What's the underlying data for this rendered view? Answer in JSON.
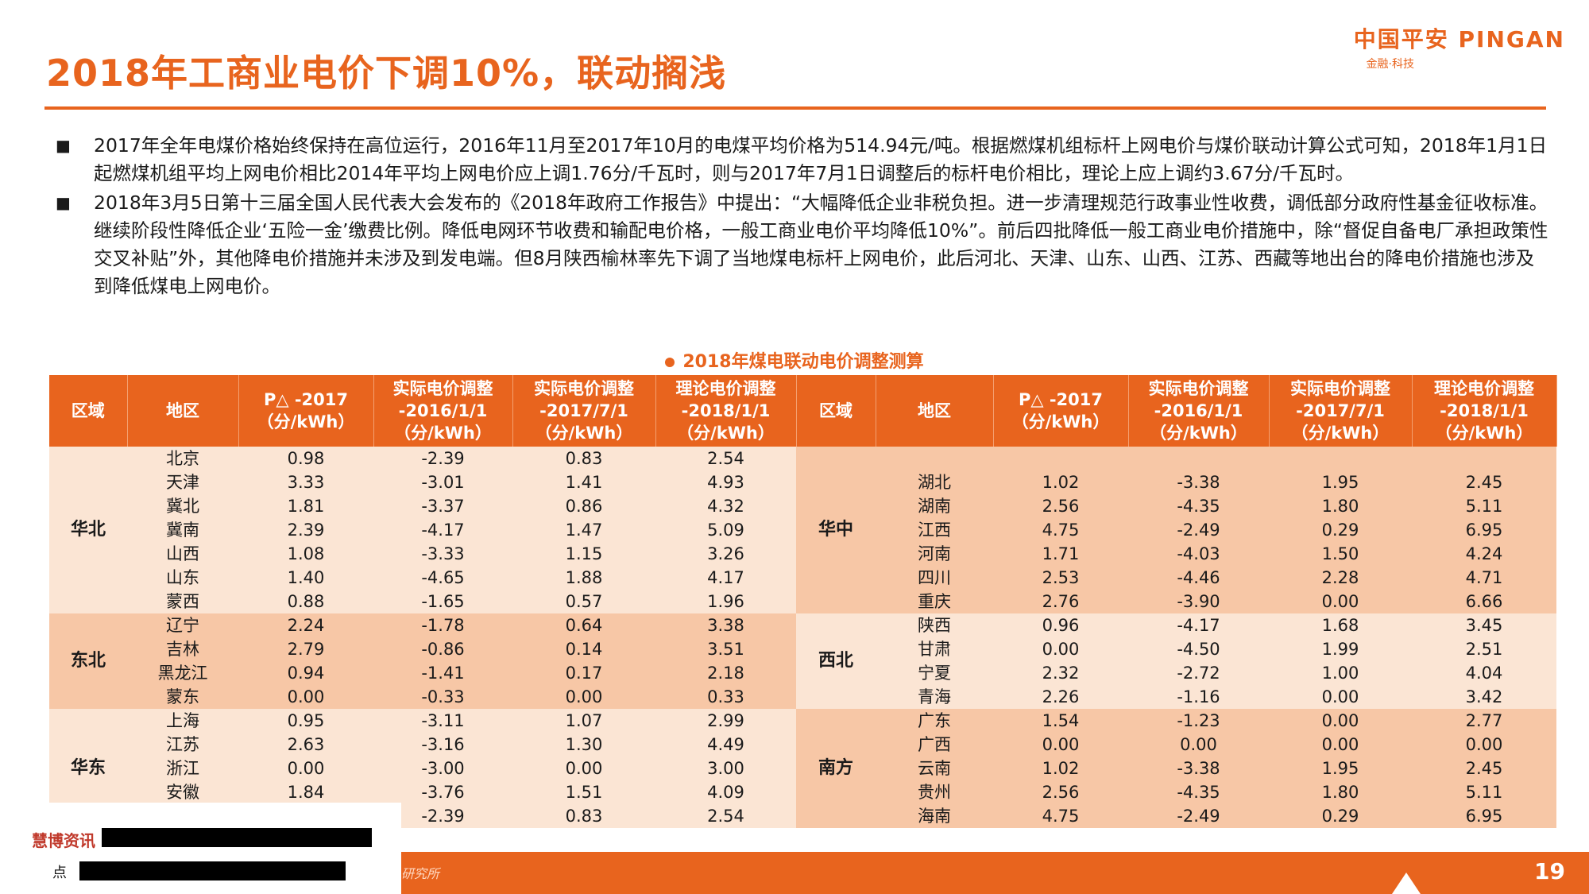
{
  "title": "2018年工商业电价下调10%，联动搁浅",
  "logo": {
    "main": "中国平安 PINGAN",
    "sub": "金融·科技"
  },
  "bullets": [
    "2017年全年电煤价格始终保持在高位运行，2016年11月至2017年10月的电煤平均价格为514.94元/吨。根据燃煤机组标杆上网电价与煤价联动计算公式可知，2018年1月1日起燃煤机组平均上网电价相比2014年平均上网电价应上调1.76分/千瓦时，则与2017年7月1日调整后的标杆电价相比，理论上应上调约3.67分/千瓦时。",
    "2018年3月5日第十三届全国人民代表大会发布的《2018年政府工作报告》中提出：“大幅降低企业非税负担。进一步清理规范行政事业性收费，调低部分政府性基金征收标准。继续阶段性降低企业‘五险一金’缴费比例。降低电网环节收费和输配电价格，一般工商业电价平均降低10%”。前后四批降低一般工商业电价措施中，除“督促自备电厂承担政策性交叉补贴”外，其他降电价措施并未涉及到发电端。但8月陕西榆林率先下调了当地煤电标杆上网电价，此后河北、天津、山东、山西、江苏、西藏等地出台的降电价措施也涉及到降低煤电上网电价。"
  ],
  "table_title": "2018年煤电联动电价调整测算",
  "headers": {
    "region": "区域",
    "area": "地区",
    "pdelta": "P△ -2017 （分/kWh）",
    "actual2016": "实际电价调整 -2016/1/1 （分/kWh）",
    "actual2017": "实际电价调整 -2017/7/1 （分/kWh）",
    "theory2018": "理论电价调整 -2018/1/1 （分/kWh）"
  },
  "left_groups": [
    {
      "region": "华北",
      "rows": [
        [
          "北京",
          "0.98",
          "-2.39",
          "0.83",
          "2.54"
        ],
        [
          "天津",
          "3.33",
          "-3.01",
          "1.41",
          "4.93"
        ],
        [
          "冀北",
          "1.81",
          "-3.37",
          "0.86",
          "4.32"
        ],
        [
          "冀南",
          "2.39",
          "-4.17",
          "1.47",
          "5.09"
        ],
        [
          "山西",
          "1.08",
          "-3.33",
          "1.15",
          "3.26"
        ],
        [
          "山东",
          "1.40",
          "-4.65",
          "1.88",
          "4.17"
        ],
        [
          "蒙西",
          "0.88",
          "-1.65",
          "0.57",
          "1.96"
        ]
      ]
    },
    {
      "region": "东北",
      "rows": [
        [
          "辽宁",
          "2.24",
          "-1.78",
          "0.64",
          "3.38"
        ],
        [
          "吉林",
          "2.79",
          "-0.86",
          "0.14",
          "3.51"
        ],
        [
          "黑龙江",
          "0.94",
          "-1.41",
          "0.17",
          "2.18"
        ],
        [
          "蒙东",
          "0.00",
          "-0.33",
          "0.00",
          "0.33"
        ]
      ]
    },
    {
      "region": "华东",
      "rows": [
        [
          "上海",
          "0.95",
          "-3.11",
          "1.07",
          "2.99"
        ],
        [
          "江苏",
          "2.63",
          "-3.16",
          "1.30",
          "4.49"
        ],
        [
          "浙江",
          "0.00",
          "-3.00",
          "0.00",
          "3.00"
        ],
        [
          "安徽",
          "1.84",
          "-3.76",
          "1.51",
          "4.09"
        ],
        [
          "",
          "",
          "-2.39",
          "0.83",
          "2.54"
        ]
      ]
    }
  ],
  "right_groups": [
    {
      "region": "华中",
      "rows": [
        [
          "",
          "",
          "",
          "",
          ""
        ],
        [
          "湖北",
          "1.02",
          "-3.38",
          "1.95",
          "2.45"
        ],
        [
          "湖南",
          "2.56",
          "-4.35",
          "1.80",
          "5.11"
        ],
        [
          "江西",
          "4.75",
          "-2.49",
          "0.29",
          "6.95"
        ],
        [
          "河南",
          "1.71",
          "-4.03",
          "1.50",
          "4.24"
        ],
        [
          "四川",
          "2.53",
          "-4.46",
          "2.28",
          "4.71"
        ],
        [
          "重庆",
          "2.76",
          "-3.90",
          "0.00",
          "6.66"
        ]
      ]
    },
    {
      "region": "西北",
      "rows": [
        [
          "陕西",
          "0.96",
          "-4.17",
          "1.68",
          "3.45"
        ],
        [
          "甘肃",
          "0.00",
          "-4.50",
          "1.99",
          "2.51"
        ],
        [
          "宁夏",
          "2.32",
          "-2.72",
          "1.00",
          "4.04"
        ],
        [
          "青海",
          "2.26",
          "-1.16",
          "0.00",
          "3.42"
        ]
      ]
    },
    {
      "region": "南方",
      "rows": [
        [
          "广东",
          "1.54",
          "-1.23",
          "0.00",
          "2.77"
        ],
        [
          "广西",
          "0.00",
          "0.00",
          "0.00",
          "0.00"
        ],
        [
          "云南",
          "1.02",
          "-3.38",
          "1.95",
          "2.45"
        ],
        [
          "贵州",
          "2.56",
          "-4.35",
          "1.80",
          "5.11"
        ],
        [
          "海南",
          "4.75",
          "-2.49",
          "0.29",
          "6.95"
        ]
      ]
    }
  ],
  "source_label": "慧博资讯",
  "source_dot": "点",
  "footer_text": "研究所",
  "page_number": "19"
}
